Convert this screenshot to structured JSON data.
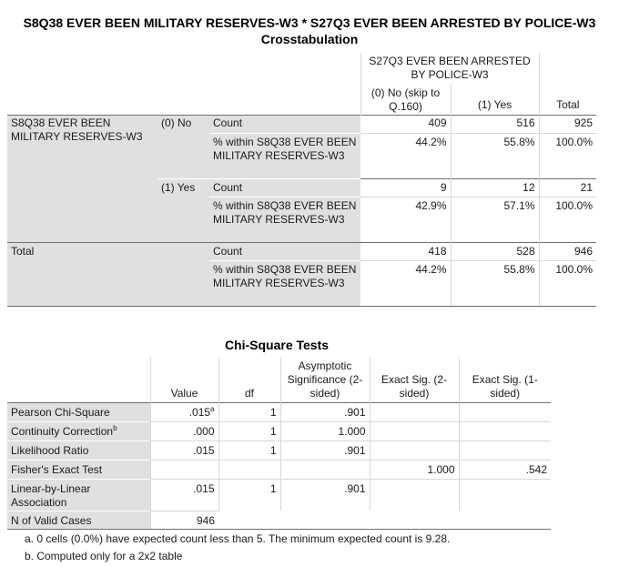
{
  "crosstab": {
    "title_line1": "S8Q38 EVER BEEN MILITARY RESERVES-W3 * S27Q3 EVER BEEN ARRESTED BY POLICE-W3",
    "title_line2": "Crosstabulation",
    "col_var": "S27Q3 EVER BEEN ARRESTED BY POLICE-W3",
    "col_no": "(0) No (skip to Q.160)",
    "col_yes": "(1) Yes",
    "col_total": "Total",
    "row_var": "S8Q38 EVER BEEN MILITARY RESERVES-W3",
    "total_label": "Total",
    "groups": [
      {
        "label": "(0) No",
        "count_label": "Count",
        "count": [
          "409",
          "516",
          "925"
        ],
        "pct_label": "% within S8Q38 EVER BEEN MILITARY RESERVES-W3",
        "pct": [
          "44.2%",
          "55.8%",
          "100.0%"
        ]
      },
      {
        "label": "(1) Yes",
        "count_label": "Count",
        "count": [
          "9",
          "12",
          "21"
        ],
        "pct_label": "% within S8Q38 EVER BEEN MILITARY RESERVES-W3",
        "pct": [
          "42.9%",
          "57.1%",
          "100.0%"
        ]
      },
      {
        "label": "",
        "count_label": "Count",
        "count": [
          "418",
          "528",
          "946"
        ],
        "pct_label": "% within S8Q38 EVER BEEN MILITARY RESERVES-W3",
        "pct": [
          "44.2%",
          "55.8%",
          "100.0%"
        ]
      }
    ]
  },
  "chi": {
    "title": "Chi-Square Tests",
    "headers": [
      "Value",
      "df",
      "Asymptotic Significance (2-sided)",
      "Exact Sig. (2-sided)",
      "Exact Sig. (1-sided)"
    ],
    "rows": [
      {
        "label": "Pearson Chi-Square",
        "sup": "a",
        "value": ".015",
        "df": "1",
        "asym": ".901",
        "exact2": "",
        "exact1": ""
      },
      {
        "label": "Continuity Correction",
        "sup": "b",
        "value": ".000",
        "df": "1",
        "asym": "1.000",
        "exact2": "",
        "exact1": ""
      },
      {
        "label": "Likelihood Ratio",
        "sup": "",
        "value": ".015",
        "df": "1",
        "asym": ".901",
        "exact2": "",
        "exact1": ""
      },
      {
        "label": "Fisher's Exact Test",
        "sup": "",
        "value": "",
        "df": "",
        "asym": "",
        "exact2": "1.000",
        "exact1": ".542"
      },
      {
        "label": "Linear-by-Linear Association",
        "sup": "",
        "value": ".015",
        "df": "1",
        "asym": ".901",
        "exact2": "",
        "exact1": ""
      },
      {
        "label": "N of Valid Cases",
        "sup": "",
        "value": "946",
        "df": "",
        "asym": "",
        "exact2": "",
        "exact1": ""
      }
    ],
    "notes": [
      "a. 0 cells (0.0%) have expected count less than 5. The minimum expected count is 9.28.",
      "b. Computed only for a 2x2 table"
    ]
  }
}
